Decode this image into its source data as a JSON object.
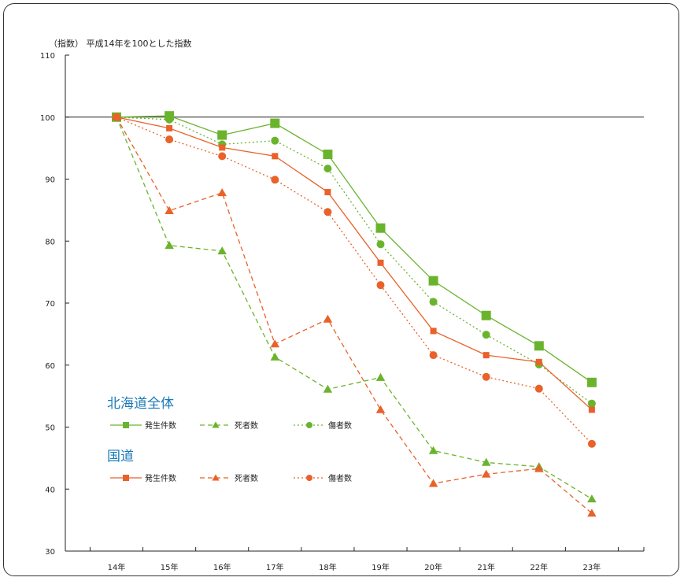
{
  "chart_data": {
    "type": "line",
    "unit_label": "（指数） 平成14年を100とした指数",
    "categories": [
      "14年",
      "15年",
      "16年",
      "17年",
      "18年",
      "19年",
      "20年",
      "21年",
      "22年",
      "23年"
    ],
    "ylim": [
      30,
      110
    ],
    "yticks": [
      30,
      40,
      50,
      60,
      70,
      80,
      90,
      100,
      110
    ],
    "reference_line": 100,
    "grid": false,
    "legend_groups": [
      {
        "title": "北海道全体",
        "color": "#6ab42d",
        "items": [
          {
            "label": "発生件数",
            "marker": "square",
            "dash": "solid"
          },
          {
            "label": "死者数",
            "marker": "triangle",
            "dash": "dashed"
          },
          {
            "label": "傷者数",
            "marker": "circle",
            "dash": "dotted"
          }
        ]
      },
      {
        "title": "国道",
        "color": "#e8622a",
        "items": [
          {
            "label": "発生件数",
            "marker": "square",
            "dash": "solid"
          },
          {
            "label": "死者数",
            "marker": "triangle",
            "dash": "dashed"
          },
          {
            "label": "傷者数",
            "marker": "circle",
            "dash": "dotted"
          }
        ]
      }
    ],
    "series": [
      {
        "group": "北海道全体",
        "name": "発生件数",
        "color": "#6ab42d",
        "marker": "square",
        "dash": "solid",
        "msize": "large",
        "values": [
          100,
          100.2,
          97.1,
          99,
          94,
          82.1,
          73.6,
          68,
          63.1,
          57.2
        ]
      },
      {
        "group": "北海道全体",
        "name": "死者数",
        "color": "#6ab42d",
        "marker": "triangle",
        "dash": "dashed",
        "msize": "normal",
        "values": [
          100,
          79.3,
          78.4,
          61.3,
          56.1,
          58,
          46.2,
          44.3,
          43.6,
          38.4
        ]
      },
      {
        "group": "北海道全体",
        "name": "傷者数",
        "color": "#6ab42d",
        "marker": "circle",
        "dash": "dotted",
        "msize": "normal",
        "values": [
          100,
          99.6,
          95.6,
          96.2,
          91.7,
          79.5,
          70.2,
          64.9,
          60.1,
          53.8
        ]
      },
      {
        "group": "国道",
        "name": "発生件数",
        "color": "#e8622a",
        "marker": "square",
        "dash": "solid",
        "msize": "small",
        "values": [
          100,
          98.2,
          95.1,
          93.7,
          87.9,
          76.5,
          65.5,
          61.6,
          60.5,
          52.8
        ]
      },
      {
        "group": "国道",
        "name": "死者数",
        "color": "#e8622a",
        "marker": "triangle",
        "dash": "dashed",
        "msize": "normal",
        "values": [
          100,
          84.9,
          87.8,
          63.4,
          67.4,
          52.8,
          40.9,
          42.4,
          43.3,
          36.1
        ]
      },
      {
        "group": "国道",
        "name": "傷者数",
        "color": "#e8622a",
        "marker": "circle",
        "dash": "dotted",
        "msize": "normal",
        "values": [
          100,
          96.4,
          93.7,
          89.9,
          84.7,
          72.9,
          61.6,
          58.1,
          56.2,
          47.3
        ]
      }
    ]
  }
}
